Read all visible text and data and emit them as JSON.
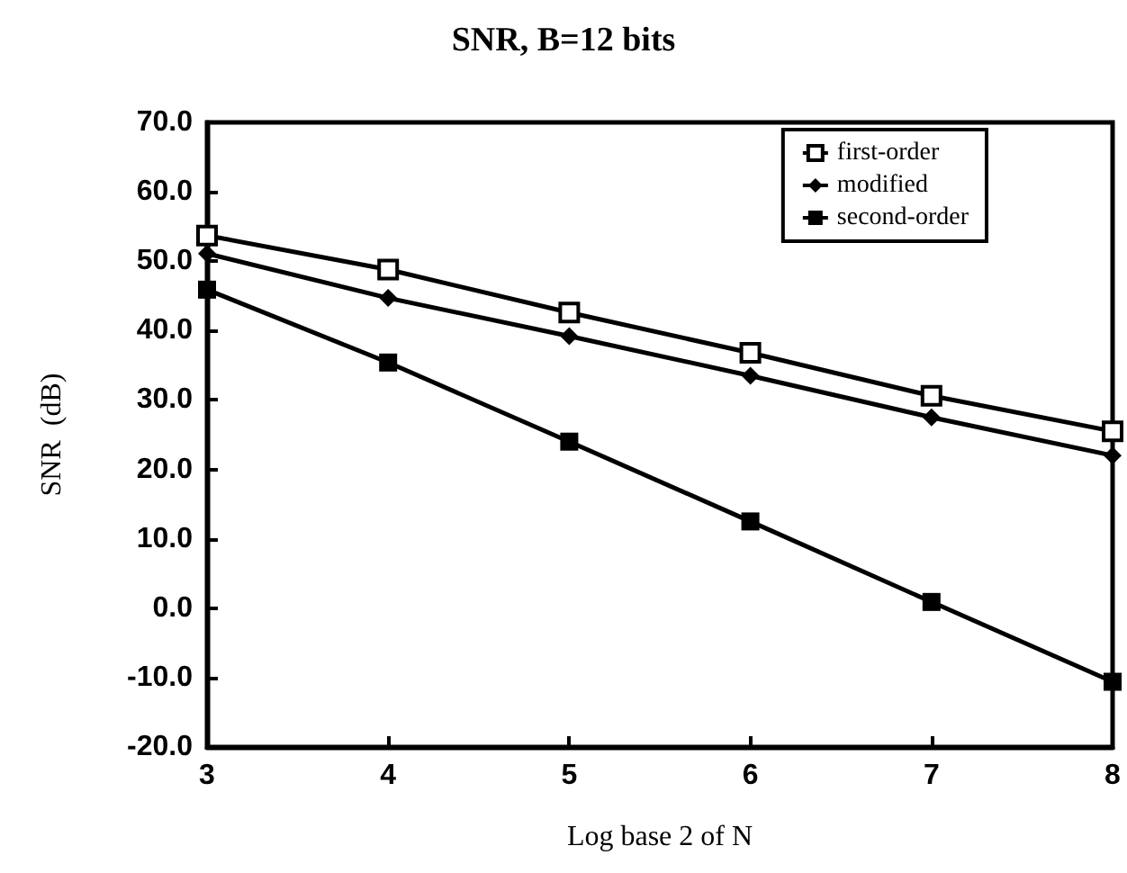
{
  "chart_data": {
    "type": "line",
    "title": "SNR, B=12 bits",
    "xlabel": "Log base 2 of N",
    "ylabel": "SNR  (dB)",
    "x": [
      3,
      4,
      5,
      6,
      7,
      8
    ],
    "series": [
      {
        "name": "first-order",
        "color": "#000000",
        "marker": "square",
        "values": [
          53.7,
          48.8,
          42.6,
          36.8,
          30.6,
          25.5
        ]
      },
      {
        "name": "modified",
        "color": "#000000",
        "marker": "diamond",
        "values": [
          51.1,
          44.7,
          39.2,
          33.5,
          27.5,
          22.0
        ]
      },
      {
        "name": "second-order",
        "color": "#000000",
        "marker": "square",
        "values": [
          45.9,
          35.4,
          24.0,
          12.5,
          0.9,
          -10.6
        ]
      }
    ],
    "xlim": [
      3,
      8
    ],
    "xticks": [
      3,
      4,
      5,
      6,
      7,
      8
    ],
    "ylim": [
      -20,
      70
    ],
    "yticks": [
      {
        "value": -20,
        "label": "-20.0"
      },
      {
        "value": -10,
        "label": "-10.0"
      },
      {
        "value": 0,
        "label": "0.0"
      },
      {
        "value": 10,
        "label": "10.0"
      },
      {
        "value": 20,
        "label": "20.0"
      },
      {
        "value": 30,
        "label": "30.0"
      },
      {
        "value": 40,
        "label": "40.0"
      },
      {
        "value": 50,
        "label": "50.0"
      },
      {
        "value": 60,
        "label": "60.0"
      },
      {
        "value": 70,
        "label": "70.0"
      }
    ],
    "legend": "top right",
    "grid": false,
    "line_style": "solid"
  }
}
